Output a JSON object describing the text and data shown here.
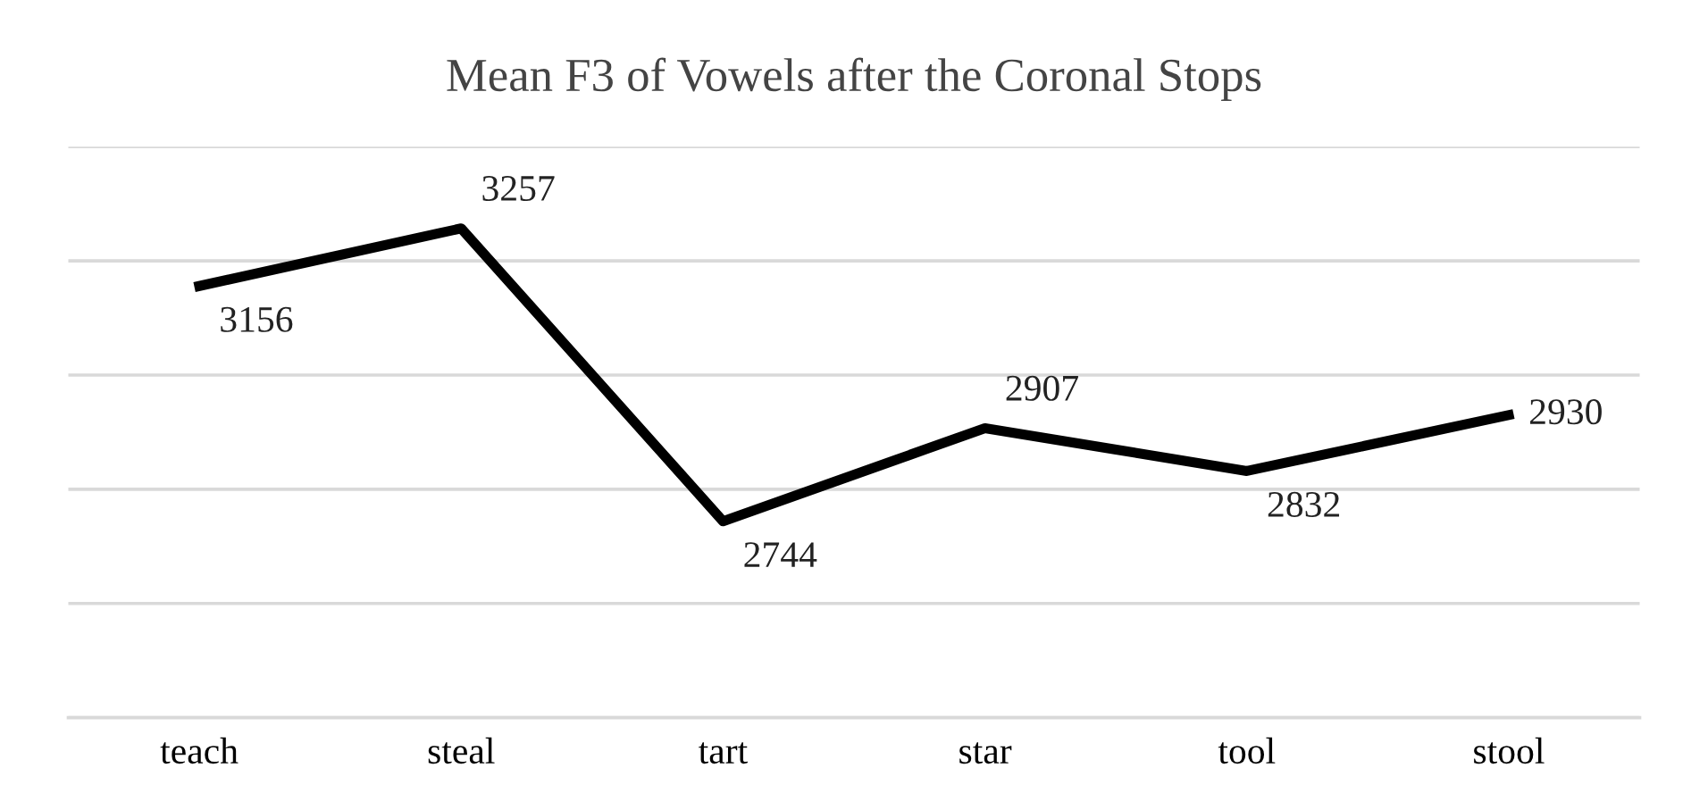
{
  "chart_data": {
    "type": "line",
    "title": "Mean F3 of Vowels after the Coronal Stops",
    "categories": [
      "teach",
      "steal",
      "tart",
      "star",
      "tool",
      "stool"
    ],
    "series": [
      {
        "color": "#000000",
        "values": [
          3156,
          3257,
          2744,
          2907,
          2832,
          2930
        ]
      }
    ],
    "ylim": [
      2400,
      3400
    ],
    "yticks": [
      {
        "value": 2400,
        "label": null
      },
      {
        "value": 2600,
        "label": null
      },
      {
        "value": 2800,
        "label": null
      },
      {
        "value": 3000,
        "label": null
      },
      {
        "value": 3200,
        "label": null
      },
      {
        "value": 3400,
        "label": null
      }
    ],
    "tick_labels": "x",
    "grid": "y",
    "data_labels": true,
    "marker": "none",
    "line_style": "solid",
    "legend": false
  }
}
